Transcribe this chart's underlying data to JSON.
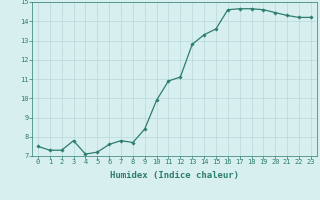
{
  "x": [
    0,
    1,
    2,
    3,
    4,
    5,
    6,
    7,
    8,
    9,
    10,
    11,
    12,
    13,
    14,
    15,
    16,
    17,
    18,
    19,
    20,
    21,
    22,
    23
  ],
  "y": [
    7.5,
    7.3,
    7.3,
    7.8,
    7.1,
    7.2,
    7.6,
    7.8,
    7.7,
    8.4,
    9.9,
    10.9,
    11.1,
    12.8,
    13.3,
    13.6,
    14.6,
    14.65,
    14.65,
    14.6,
    14.45,
    14.3,
    14.2,
    14.2
  ],
  "line_color": "#2d7d6e",
  "marker": "D",
  "marker_size": 1.8,
  "bg_color": "#d8eff0",
  "grid_color": "#b8d8da",
  "axis_color": "#2d7d6e",
  "xlabel": "Humidex (Indice chaleur)",
  "ylim": [
    7,
    15
  ],
  "xlim": [
    -0.5,
    23.5
  ],
  "yticks": [
    7,
    8,
    9,
    10,
    11,
    12,
    13,
    14,
    15
  ],
  "xticks": [
    0,
    1,
    2,
    3,
    4,
    5,
    6,
    7,
    8,
    9,
    10,
    11,
    12,
    13,
    14,
    15,
    16,
    17,
    18,
    19,
    20,
    21,
    22,
    23
  ],
  "tick_fontsize": 5.0,
  "xlabel_fontsize": 6.5,
  "tick_color": "#2d7d6e",
  "line_width": 0.9
}
